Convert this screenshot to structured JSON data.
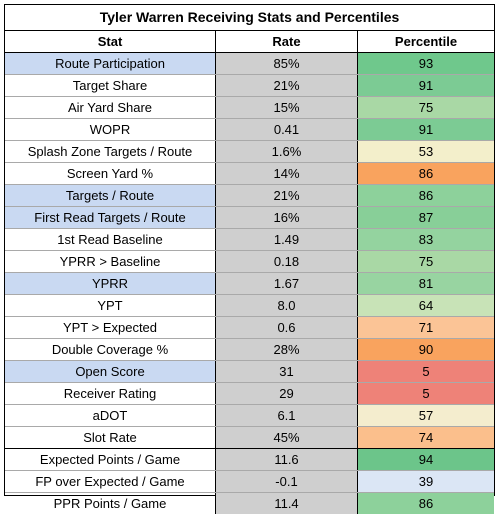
{
  "title": "Tyler Warren Receiving Stats and Percentiles",
  "columns": {
    "stat": "Stat",
    "rate": "Rate",
    "percentile": "Percentile"
  },
  "colors": {
    "header_border": "#000000",
    "rate_bg": "#cfcfcf",
    "highlight_stat_bg": "#c9d9f2"
  },
  "rows": [
    {
      "stat": "Route Participation",
      "rate": "85%",
      "percentile": "93",
      "highlight": true,
      "pct_color": "#6fc88c"
    },
    {
      "stat": "Target Share",
      "rate": "21%",
      "percentile": "91",
      "highlight": false,
      "pct_color": "#7ccb94"
    },
    {
      "stat": "Air Yard Share",
      "rate": "15%",
      "percentile": "75",
      "highlight": false,
      "pct_color": "#a9d8a5"
    },
    {
      "stat": "WOPR",
      "rate": "0.41",
      "percentile": "91",
      "highlight": false,
      "pct_color": "#7ccb94"
    },
    {
      "stat": "Splash Zone Targets / Route",
      "rate": "1.6%",
      "percentile": "53",
      "highlight": false,
      "pct_color": "#f3efcb"
    },
    {
      "stat": "Screen Yard %",
      "rate": "14%",
      "percentile": "86",
      "highlight": false,
      "pct_color": "#f9a35e"
    },
    {
      "stat": "Targets / Route",
      "rate": "21%",
      "percentile": "86",
      "highlight": true,
      "pct_color": "#8dd19b"
    },
    {
      "stat": "First Read Targets / Route",
      "rate": "16%",
      "percentile": "87",
      "highlight": true,
      "pct_color": "#88cf98"
    },
    {
      "stat": "1st Read Baseline",
      "rate": "1.49",
      "percentile": "83",
      "highlight": false,
      "pct_color": "#94d39f"
    },
    {
      "stat": "YPRR > Baseline",
      "rate": "0.18",
      "percentile": "75",
      "highlight": false,
      "pct_color": "#a9d8a5"
    },
    {
      "stat": "YPRR",
      "rate": "1.67",
      "percentile": "81",
      "highlight": true,
      "pct_color": "#98d4a1"
    },
    {
      "stat": "YPT",
      "rate": "8.0",
      "percentile": "64",
      "highlight": false,
      "pct_color": "#c8e3b7"
    },
    {
      "stat": "YPT > Expected",
      "rate": "0.6",
      "percentile": "71",
      "highlight": false,
      "pct_color": "#fbc496"
    },
    {
      "stat": "Double Coverage %",
      "rate": "28%",
      "percentile": "90",
      "highlight": false,
      "pct_color": "#f9a35e"
    },
    {
      "stat": "Open Score",
      "rate": "31",
      "percentile": "5",
      "highlight": true,
      "pct_color": "#ee8278"
    },
    {
      "stat": "Receiver Rating",
      "rate": "29",
      "percentile": "5",
      "highlight": false,
      "pct_color": "#ee8278"
    },
    {
      "stat": "aDOT",
      "rate": "6.1",
      "percentile": "57",
      "highlight": false,
      "pct_color": "#f4edce"
    },
    {
      "stat": "Slot Rate",
      "rate": "45%",
      "percentile": "74",
      "highlight": false,
      "pct_color": "#fbbf8c"
    },
    {
      "stat": "Expected Points / Game",
      "rate": "11.6",
      "percentile": "94",
      "highlight": false,
      "pct_color": "#6cc58a"
    },
    {
      "stat": "FP over Expected / Game",
      "rate": "-0.1",
      "percentile": "39",
      "highlight": false,
      "pct_color": "#dbe6f5"
    },
    {
      "stat": "PPR Points / Game",
      "rate": "11.4",
      "percentile": "86",
      "highlight": false,
      "pct_color": "#8dd19b"
    }
  ]
}
